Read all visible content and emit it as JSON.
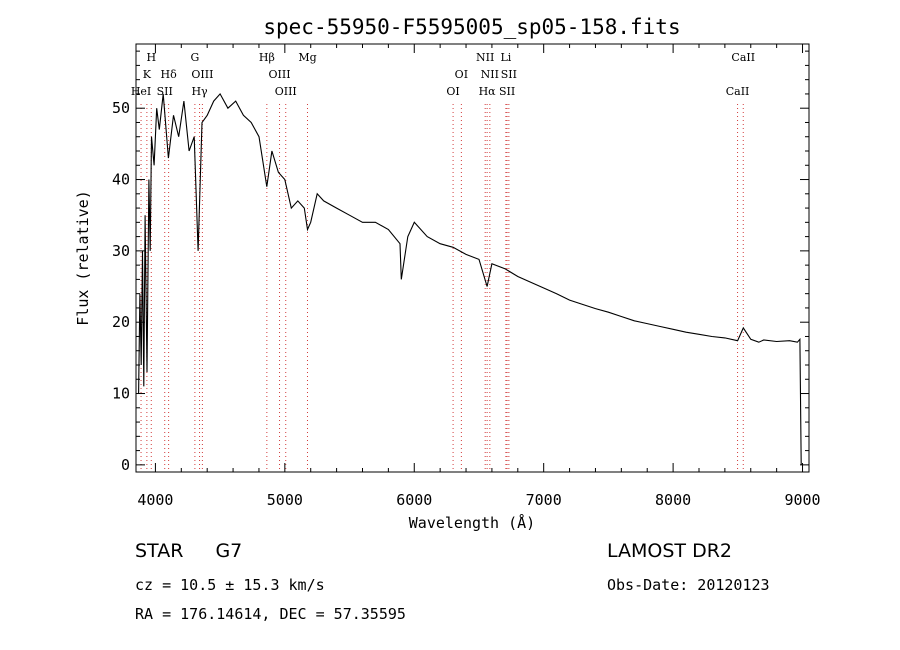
{
  "chart_data": {
    "type": "line",
    "title": "spec-55950-F5595005_sp05-158.fits",
    "xlabel": "Wavelength (Å)",
    "ylabel": "Flux (relative)",
    "xlim": [
      3850,
      9050
    ],
    "ylim": [
      -1,
      59
    ],
    "x_ticks": [
      4000,
      5000,
      6000,
      7000,
      8000,
      9000
    ],
    "y_ticks": [
      0,
      10,
      20,
      30,
      40,
      50
    ],
    "grid": false,
    "series": [
      {
        "color": "#000000",
        "x": [
          3870,
          3880,
          3890,
          3900,
          3910,
          3920,
          3935,
          3950,
          3960,
          3970,
          3990,
          4010,
          4030,
          4060,
          4100,
          4140,
          4180,
          4220,
          4260,
          4300,
          4330,
          4360,
          4400,
          4450,
          4500,
          4560,
          4620,
          4680,
          4740,
          4800,
          4861,
          4900,
          4950,
          5000,
          5050,
          5100,
          5150,
          5175,
          5200,
          5250,
          5300,
          5400,
          5500,
          5600,
          5700,
          5800,
          5890,
          5900,
          5950,
          6000,
          6100,
          6200,
          6300,
          6400,
          6500,
          6563,
          6600,
          6700,
          6800,
          6900,
          7000,
          7100,
          7200,
          7300,
          7400,
          7500,
          7600,
          7700,
          7800,
          7900,
          8000,
          8100,
          8200,
          8300,
          8400,
          8498,
          8542,
          8600,
          8662,
          8700,
          8800,
          8900,
          8960,
          8980,
          8990
        ],
        "values": [
          10,
          24,
          14,
          30,
          11,
          35,
          13,
          40,
          30,
          46,
          42,
          50,
          47,
          52,
          43,
          49,
          46,
          51,
          44,
          46,
          30,
          48,
          49,
          51,
          52,
          50,
          51,
          49,
          48,
          46,
          39,
          44,
          41,
          40,
          36,
          37,
          36,
          33,
          34,
          38,
          37,
          36,
          35,
          34,
          34,
          33,
          31,
          26,
          32,
          34,
          32,
          31,
          30.5,
          29.5,
          28.8,
          25,
          28.2,
          27.5,
          26.4,
          25.6,
          24.8,
          24,
          23.1,
          22.5,
          21.9,
          21.4,
          20.8,
          20.2,
          19.8,
          19.4,
          19,
          18.6,
          18.3,
          18,
          17.8,
          17.4,
          19.2,
          17.6,
          17.2,
          17.5,
          17.3,
          17.4,
          17.2,
          17.6,
          0
        ]
      }
    ],
    "line_markers": [
      {
        "label": "H",
        "x": 3968,
        "row": 0
      },
      {
        "label": "K",
        "x": 3934,
        "row": 1
      },
      {
        "label": "Hδ",
        "x": 4102,
        "row": 1
      },
      {
        "label": "HeI",
        "x": 3889,
        "row": 2
      },
      {
        "label": "SII",
        "x": 4072,
        "row": 2
      },
      {
        "label": "G",
        "x": 4305,
        "row": 0
      },
      {
        "label": "OIII",
        "x": 4363,
        "row": 1
      },
      {
        "label": "Hγ",
        "x": 4341,
        "row": 2
      },
      {
        "label": "Hβ",
        "x": 4861,
        "row": 0
      },
      {
        "label": "OIII",
        "x": 4959,
        "row": 1
      },
      {
        "label": "OIII",
        "x": 5007,
        "row": 2
      },
      {
        "label": "Mg",
        "x": 5175,
        "row": 0
      },
      {
        "label": "OI",
        "x": 6364,
        "row": 1
      },
      {
        "label": "OI",
        "x": 6300,
        "row": 2
      },
      {
        "label": "NII",
        "x": 6548,
        "row": 0
      },
      {
        "label": "Li",
        "x": 6708,
        "row": 0
      },
      {
        "label": "NII",
        "x": 6584,
        "row": 1
      },
      {
        "label": "SII",
        "x": 6731,
        "row": 1
      },
      {
        "label": "Hα",
        "x": 6563,
        "row": 2
      },
      {
        "label": "SII",
        "x": 6717,
        "row": 2
      },
      {
        "label": "CaII",
        "x": 8542,
        "row": 0
      },
      {
        "label": "CaII",
        "x": 8498,
        "row": 2
      }
    ],
    "marker_color": "#d23c3c"
  },
  "info": {
    "class_label": "STAR",
    "subclass": "G7",
    "redshift": "cz = 10.5 ± 15.3 km/s",
    "coords": "RA = 176.14614, DEC =  57.35595",
    "survey": "LAMOST DR2",
    "obs_date": "Obs-Date: 20120123"
  }
}
